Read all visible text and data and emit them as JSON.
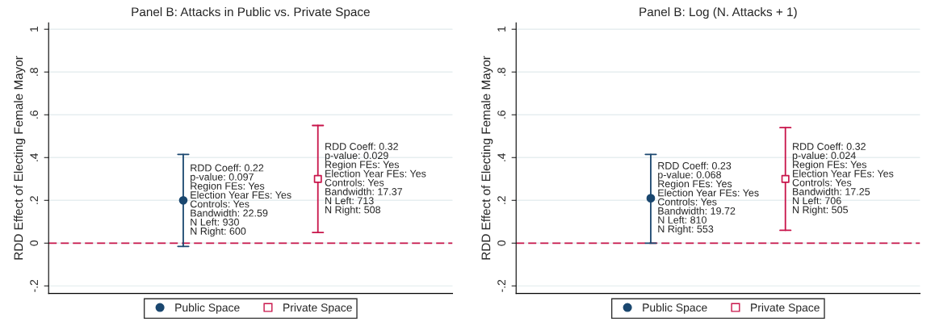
{
  "chart_data": [
    {
      "type": "scatter",
      "title": "Panel B: Attacks in Public vs. Private Space",
      "ylabel": "RDD Effect of Electing Female Mayor",
      "categories": [
        null,
        null
      ],
      "series": [
        {
          "name": "Public Space",
          "color": "#1a476f",
          "marker": "circle",
          "values": [
            0.2,
            null
          ],
          "errors": [
            [
              -0.015,
              0.415
            ],
            null
          ]
        },
        {
          "name": "Private Space",
          "color": "#c8144a",
          "marker": "square",
          "values": [
            null,
            0.3
          ],
          "errors": [
            null,
            [
              0.05,
              0.55
            ]
          ]
        }
      ],
      "annotations": [
        "RDD Coeff: 0.22\np-value: 0.097\nRegion FEs: Yes\nElection Year FEs: Yes\nControls: Yes\nBandwidth: 22.59\nN Left: 930\nN Right: 600",
        "RDD Coeff: 0.32\np-value: 0.029\nRegion FEs: Yes\nElection Year FEs: Yes\nControls: Yes\nBandwidth: 17.37\nN Left: 713\nN Right: 508"
      ],
      "ylim": [
        -0.235,
        1.03
      ],
      "yticks": [
        {
          "value": -0.2,
          "label": "-.2"
        },
        0,
        {
          "value": 0.2,
          "label": ".2"
        },
        {
          "value": 0.4,
          "label": ".4"
        },
        {
          "value": 0.6,
          "label": ".6"
        },
        {
          "value": 0.8,
          "label": ".8"
        },
        1
      ],
      "ref_lines": [
        {
          "axis": "y",
          "value": 0,
          "color": "#c8144a",
          "line_style": "dashed"
        }
      ],
      "grid": "y",
      "legend": "bottom",
      "tick_labels": "y"
    },
    {
      "type": "scatter",
      "title": "Panel B: Log (N. Attacks + 1)",
      "ylabel": "RDD Effect of Electing Female Mayor",
      "categories": [
        null,
        null
      ],
      "series": [
        {
          "name": "Public Space",
          "color": "#1a476f",
          "marker": "circle",
          "values": [
            0.21,
            null
          ],
          "errors": [
            [
              0,
              0.415
            ],
            null
          ]
        },
        {
          "name": "Private Space",
          "color": "#c8144a",
          "marker": "square",
          "values": [
            null,
            0.3
          ],
          "errors": [
            null,
            [
              0.06,
              0.54
            ]
          ]
        }
      ],
      "annotations": [
        "RDD Coeff: 0.23\np-value: 0.068\nRegion FEs: Yes\nElection Year FEs: Yes\nControls: Yes\nBandwidth: 19.72\nN Left: 810\nN Right: 553",
        "RDD Coeff: 0.32\np-value: 0.024\nRegion FEs: Yes\nElection Year FEs: Yes\nControls: Yes\nBandwidth: 17.25\nN Left: 706\nN Right: 505"
      ],
      "ylim": [
        -0.235,
        1.03
      ],
      "yticks": [
        {
          "value": -0.2,
          "label": "-.2"
        },
        0,
        {
          "value": 0.2,
          "label": ".2"
        },
        {
          "value": 0.4,
          "label": ".4"
        },
        {
          "value": 0.6,
          "label": ".6"
        },
        {
          "value": 0.8,
          "label": ".8"
        },
        1
      ],
      "ref_lines": [
        {
          "axis": "y",
          "value": 0,
          "color": "#c8144a",
          "line_style": "dashed"
        }
      ],
      "grid": "y",
      "legend": "bottom",
      "tick_labels": "y"
    }
  ]
}
